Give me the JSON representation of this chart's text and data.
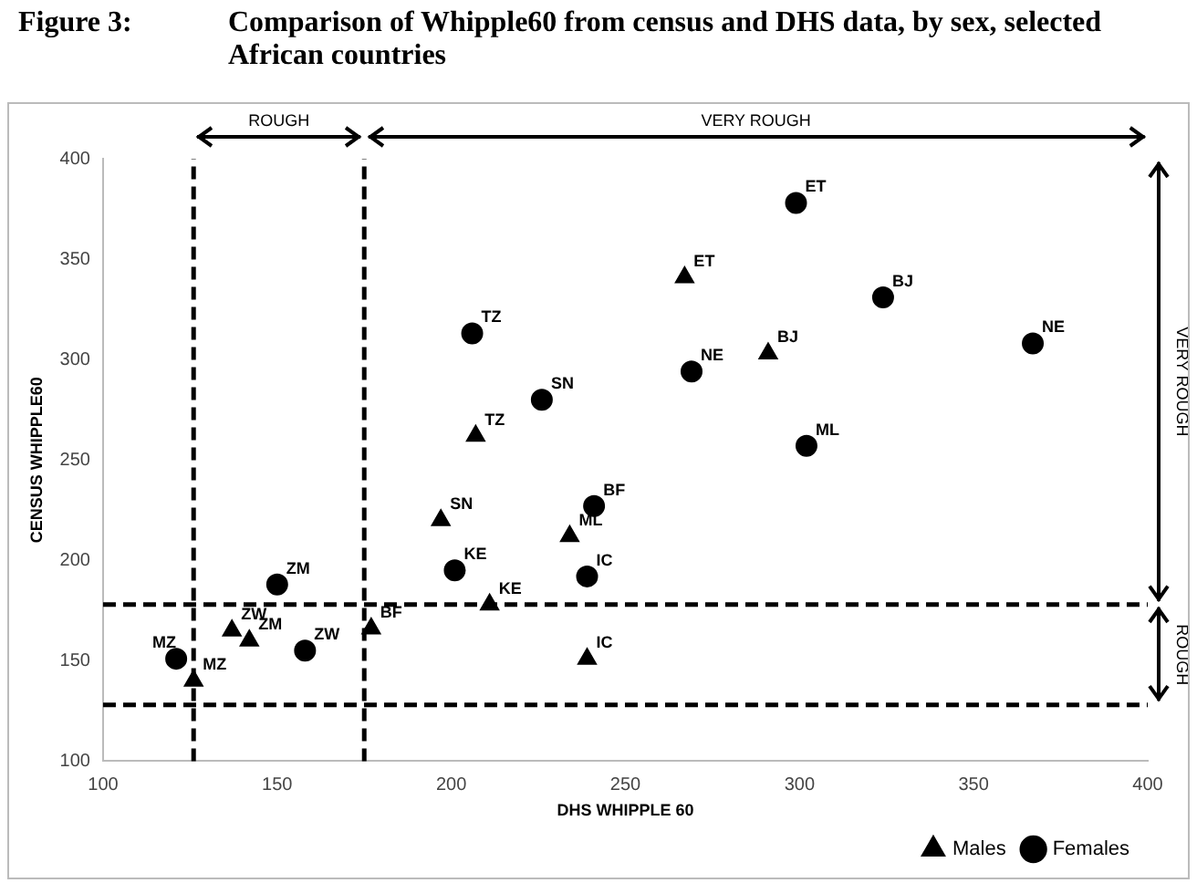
{
  "chart_data": {
    "type": "scatter",
    "title": "Figure 3:\tComparison of Whipple60 from census and DHS data, by sex, selected African countries",
    "xlabel": "DHS WHIPPLE 60",
    "ylabel": "CENSUS WHIPPLE60",
    "xlim": [
      100,
      400
    ],
    "ylim": [
      100,
      400
    ],
    "xticks": [
      100,
      150,
      200,
      250,
      300,
      350,
      400
    ],
    "yticks": [
      100,
      150,
      200,
      250,
      300,
      350,
      400
    ],
    "grid": false,
    "legend": "bottom right",
    "series": [
      {
        "name": "Males",
        "color": "#000000",
        "marker": "triangle",
        "x": [
          177,
          197,
          211,
          234,
          239,
          207,
          267,
          291,
          137,
          142,
          126
        ],
        "values": [
          166,
          220,
          178,
          212,
          151,
          262,
          341,
          303,
          165,
          160,
          140
        ]
      },
      {
        "name": "Females",
        "color": "#000000",
        "marker": "circle",
        "x": [
          121,
          150,
          158,
          201,
          239,
          241,
          226,
          206,
          269,
          302,
          299,
          324,
          367
        ],
        "values": [
          151,
          188,
          155,
          195,
          192,
          227,
          280,
          313,
          294,
          257,
          378,
          331,
          308
        ]
      }
    ],
    "ref_lines": [
      {
        "axis": "x",
        "value": 126,
        "line_style": "dashed"
      },
      {
        "axis": "x",
        "value": 175,
        "line_style": "dashed"
      },
      {
        "axis": "y",
        "value": 128,
        "line_style": "dashed"
      },
      {
        "axis": "y",
        "value": 178,
        "line_style": "dashed"
      }
    ],
    "annotations": [
      "ROUGH",
      "VERY ROUGH",
      "ROUGH",
      "VERY ROUGH",
      {
        "text": "BF",
        "x": 177,
        "y": 166
      },
      {
        "text": "SN",
        "x": 197,
        "y": 220
      },
      {
        "text": "KE",
        "x": 211,
        "y": 178
      },
      {
        "text": "ML",
        "x": 234,
        "y": 212
      },
      {
        "text": "IC",
        "x": 239,
        "y": 151
      },
      {
        "text": "TZ",
        "x": 207,
        "y": 262
      },
      {
        "text": "ET",
        "x": 267,
        "y": 341
      },
      {
        "text": "BJ",
        "x": 291,
        "y": 303
      },
      {
        "text": "ZW",
        "x": 137,
        "y": 165
      },
      {
        "text": "ZM",
        "x": 142,
        "y": 160
      },
      {
        "text": "MZ",
        "x": 126,
        "y": 140
      },
      {
        "text": "MZ",
        "x": 121,
        "y": 151
      },
      {
        "text": "ZM",
        "x": 150,
        "y": 188
      },
      {
        "text": "ZW",
        "x": 158,
        "y": 155
      },
      {
        "text": "KE",
        "x": 201,
        "y": 195
      },
      {
        "text": "IC",
        "x": 239,
        "y": 192
      },
      {
        "text": "BF",
        "x": 241,
        "y": 227
      },
      {
        "text": "SN",
        "x": 226,
        "y": 280
      },
      {
        "text": "TZ",
        "x": 206,
        "y": 313
      },
      {
        "text": "NE",
        "x": 269,
        "y": 294
      },
      {
        "text": "ML",
        "x": 302,
        "y": 257
      },
      {
        "text": "ET",
        "x": 299,
        "y": 378
      },
      {
        "text": "BJ",
        "x": 324,
        "y": 331
      },
      {
        "text": "NE",
        "x": 367,
        "y": 308
      }
    ]
  }
}
